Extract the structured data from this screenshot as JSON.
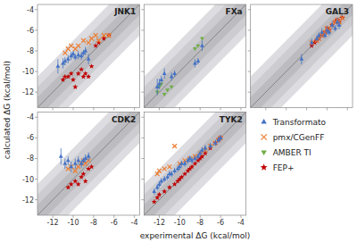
{
  "chart_data": {
    "type": "scatter",
    "xlabel": "experimental ΔG (kcal/mol)",
    "ylabel": "calculated ΔG (kcal/mol)",
    "xlim": [
      -13.5,
      -3.5
    ],
    "ylim": [
      -13.5,
      -3.5
    ],
    "xticks": [
      -12,
      -10,
      -8,
      -6,
      -4
    ],
    "yticks": [
      -12,
      -10,
      -8,
      -6,
      -4
    ],
    "bands": [
      3,
      2,
      1
    ],
    "legend": "lower right",
    "series": [
      {
        "name": "Transformato",
        "color": "#4472C4",
        "marker": "triangle-up"
      },
      {
        "name": "pmx/CGenFF",
        "color": "#ED7D31",
        "marker": "x"
      },
      {
        "name": "AMBER TI",
        "color": "#70AD47",
        "marker": "triangle-down"
      },
      {
        "name": "FEP+",
        "color": "#C00000",
        "marker": "star"
      }
    ],
    "panels": [
      {
        "title": "JNK1",
        "series": [
          {
            "x": [
              -11.5,
              -11.0,
              -10.8,
              -10.5,
              -10.2,
              -10.0,
              -9.8,
              -9.5,
              -9.2,
              -9.0,
              -8.8,
              -8.5
            ],
            "values": [
              -9.5,
              -9.2,
              -9.0,
              -8.8,
              -8.5,
              -8.3,
              -8.6,
              -8.4,
              -8.5,
              -8.2,
              -8.0,
              -8.8
            ],
            "error": [
              0.7,
              0.5,
              0.4,
              0.4,
              0.4,
              0.3,
              0.3,
              0.4,
              0.4,
              0.3,
              0.4,
              0.5
            ]
          },
          {
            "x": [
              -10.8,
              -10.5,
              -10.2,
              -9.8,
              -9.5,
              -9.0,
              -8.5,
              -8.2,
              -7.8,
              -7.5,
              -7.0,
              -6.5
            ],
            "values": [
              -8.2,
              -7.8,
              -7.5,
              -7.8,
              -7.5,
              -7.0,
              -7.2,
              -6.8,
              -6.5,
              -7.0,
              -6.5,
              -6.5
            ]
          },
          {
            "x": [],
            "values": []
          },
          {
            "x": [
              -11.0,
              -10.8,
              -10.5,
              -10.2,
              -10.0,
              -9.8,
              -9.5,
              -9.2,
              -9.0,
              -8.8,
              -8.5,
              -8.2,
              -7.8,
              -7.5,
              -7.0,
              -6.5
            ],
            "values": [
              -10.8,
              -10.5,
              -10.5,
              -10.2,
              -10.8,
              -11.5,
              -10.2,
              -9.8,
              -10.5,
              -10.2,
              -10.5,
              -9.5,
              -7.5,
              -7.2,
              -6.8,
              -6.5
            ]
          }
        ]
      },
      {
        "title": "FXa",
        "series": [
          {
            "x": [
              -12.2,
              -12.0,
              -11.8,
              -11.5,
              -10.8,
              -10.5,
              -8.5,
              -8.2,
              -7.8
            ],
            "values": [
              -11.5,
              -11.2,
              -10.8,
              -10.2,
              -10.5,
              -10.2,
              -9.2,
              -9.0,
              -7.5
            ],
            "error": [
              0.8,
              0.5,
              0.4,
              0.5,
              0.4,
              0.3,
              0.4,
              0.3,
              0.5
            ]
          },
          {
            "x": [],
            "values": []
          },
          {
            "x": [
              -12.2,
              -12.0,
              -11.8,
              -11.5,
              -11.2,
              -10.8,
              -8.5,
              -8.2,
              -7.8
            ],
            "values": [
              -12.0,
              -11.5,
              -11.2,
              -12.2,
              -11.8,
              -11.5,
              -7.8,
              -7.5,
              -6.8
            ]
          },
          {
            "x": [],
            "values": []
          }
        ]
      },
      {
        "title": "GAL3",
        "series": [
          {
            "x": [
              -8.5,
              -7.5,
              -7.0,
              -6.8,
              -6.5,
              -6.2,
              -6.0,
              -5.8,
              -5.5,
              -5.2,
              -5.0,
              -4.8
            ],
            "values": [
              -8.8,
              -7.2,
              -6.8,
              -6.5,
              -6.2,
              -6.5,
              -6.0,
              -6.2,
              -5.5,
              -5.8,
              -5.2,
              -5.5
            ],
            "error": [
              0.5,
              0.4,
              0.3,
              0.3,
              0.4,
              0.3,
              0.4,
              0.3,
              0.4,
              0.3,
              0.4,
              0.4
            ]
          },
          {
            "x": [
              -7.5,
              -7.0,
              -6.8,
              -6.5,
              -6.2,
              -6.0,
              -5.8,
              -5.5,
              -5.2,
              -5.0,
              -4.8,
              -4.5
            ],
            "values": [
              -7.2,
              -7.0,
              -6.8,
              -6.5,
              -6.2,
              -5.8,
              -6.0,
              -5.5,
              -5.2,
              -5.0,
              -5.2,
              -4.8
            ]
          },
          {
            "x": [],
            "values": []
          },
          {
            "x": [
              -7.5,
              -7.2,
              -7.0,
              -6.8,
              -6.5,
              -6.2,
              -6.0,
              -5.8,
              -5.5,
              -5.2,
              -5.0,
              -4.8,
              -4.5
            ],
            "values": [
              -7.5,
              -7.2,
              -7.0,
              -6.8,
              -6.5,
              -6.2,
              -5.8,
              -6.0,
              -5.5,
              -5.2,
              -5.0,
              -5.2,
              -4.8
            ]
          }
        ]
      },
      {
        "title": "CDK2",
        "series": [
          {
            "x": [
              -11.2,
              -10.8,
              -10.5,
              -10.2,
              -9.8,
              -9.5,
              -9.2,
              -9.0,
              -8.8,
              -8.5
            ],
            "values": [
              -7.8,
              -8.5,
              -8.2,
              -8.8,
              -8.5,
              -8.2,
              -8.5,
              -8.2,
              -8.0,
              -7.8
            ],
            "error": [
              0.8,
              0.5,
              0.4,
              0.5,
              0.5,
              0.4,
              0.4,
              0.3,
              0.4,
              0.4
            ]
          },
          {
            "x": [
              -10.5,
              -10.2,
              -9.8,
              -9.5,
              -9.2,
              -9.0,
              -8.8,
              -8.5
            ],
            "values": [
              -9.0,
              -8.8,
              -9.2,
              -8.8,
              -8.5,
              -8.2,
              -8.5,
              -8.2
            ]
          },
          {
            "x": [],
            "values": []
          },
          {
            "x": [
              -10.5,
              -10.2,
              -9.8,
              -9.5,
              -9.2,
              -9.0,
              -8.8,
              -8.5,
              -8.2
            ],
            "values": [
              -10.8,
              -10.5,
              -10.2,
              -10.5,
              -9.8,
              -9.5,
              -10.2,
              -9.0,
              -8.8
            ]
          }
        ]
      },
      {
        "title": "TYK2",
        "series": [
          {
            "x": [
              -12.5,
              -12.2,
              -12.0,
              -11.8,
              -11.5,
              -11.2,
              -11.0,
              -10.8,
              -10.5,
              -10.2,
              -10.0,
              -9.8,
              -9.5,
              -9.2,
              -9.0,
              -8.8,
              -8.5,
              -8.2,
              -8.0,
              -7.8,
              -7.5,
              -7.0,
              -6.5,
              -6.2,
              -6.0
            ],
            "values": [
              -11.2,
              -10.8,
              -10.5,
              -10.2,
              -10.0,
              -9.8,
              -9.5,
              -9.5,
              -9.2,
              -9.0,
              -8.8,
              -8.5,
              -8.5,
              -8.2,
              -8.0,
              -8.2,
              -8.0,
              -7.8,
              -7.5,
              -7.2,
              -7.0,
              -6.8,
              -6.5,
              -6.2,
              -6.0
            ],
            "error": [
              0.3,
              0.3,
              0.3,
              0.3,
              0.3,
              0.3,
              0.3,
              0.3,
              0.3,
              0.3,
              0.3,
              0.3,
              0.3,
              0.3,
              0.3,
              0.3,
              0.3,
              0.3,
              0.3,
              0.3,
              0.3,
              0.3,
              0.3,
              0.3,
              0.3
            ]
          },
          {
            "x": [
              -12.2,
              -12.0,
              -11.5,
              -11.0,
              -10.5,
              -10.0,
              -9.5,
              -9.0,
              -8.5,
              -8.0,
              -7.5,
              -7.0,
              -6.5,
              -6.2,
              -6.0
            ],
            "values": [
              -9.5,
              -9.2,
              -9.0,
              -8.8,
              -6.8,
              -8.5,
              -8.2,
              -8.0,
              -7.8,
              -7.5,
              -7.2,
              -6.8,
              -6.5,
              -6.2,
              -6.0
            ]
          },
          {
            "x": [],
            "values": []
          },
          {
            "x": [
              -12.5,
              -12.2,
              -12.0,
              -11.5,
              -11.0,
              -10.5,
              -10.2,
              -10.0,
              -9.8,
              -9.5,
              -9.2,
              -9.0,
              -8.8,
              -8.5,
              -8.2,
              -8.0,
              -7.8,
              -7.5,
              -7.0,
              -6.5,
              -6.2,
              -6.0
            ],
            "values": [
              -12.2,
              -11.8,
              -11.5,
              -11.2,
              -10.8,
              -10.5,
              -10.2,
              -10.0,
              -9.8,
              -9.5,
              -9.2,
              -9.0,
              -8.8,
              -8.5,
              -8.2,
              -8.0,
              -7.8,
              -7.5,
              -7.0,
              -6.5,
              -6.2,
              -6.0
            ]
          }
        ]
      }
    ]
  }
}
